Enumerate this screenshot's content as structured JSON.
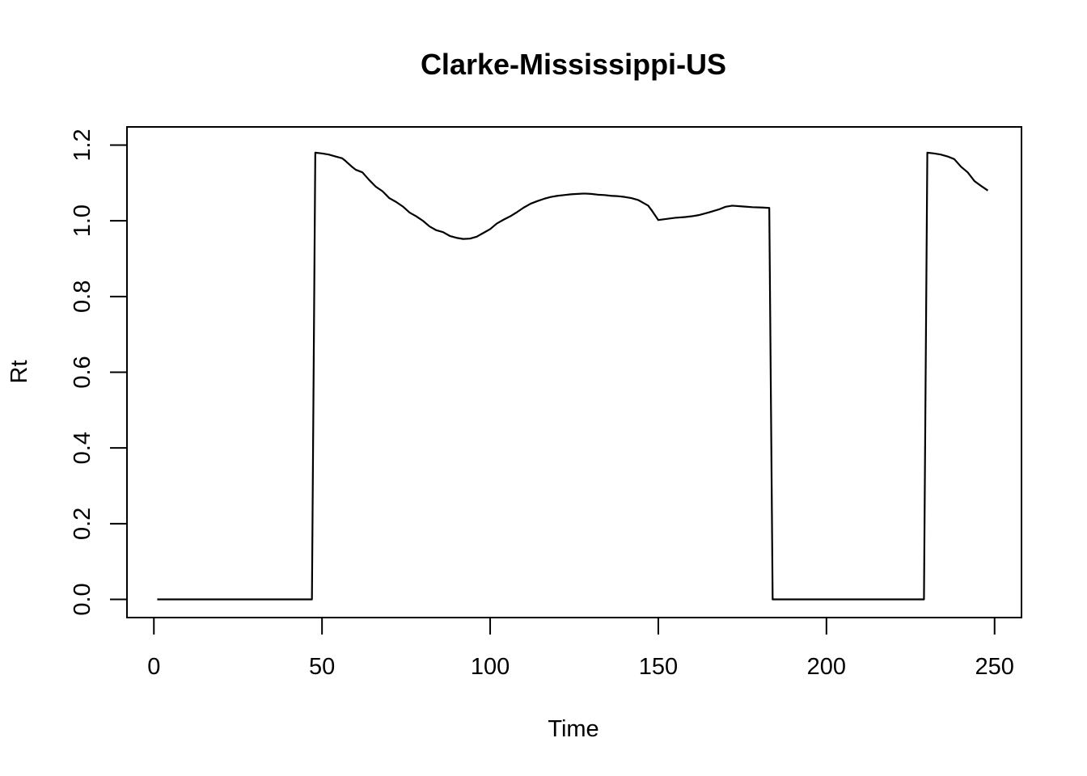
{
  "chart_data": {
    "type": "line",
    "title": "Clarke-Mississippi-US",
    "xlabel": "Time",
    "ylabel": "Rt",
    "xlim": [
      -8,
      258
    ],
    "ylim": [
      -0.048,
      1.248
    ],
    "xticks": [
      0,
      50,
      100,
      150,
      200,
      250
    ],
    "yticks": [
      0.0,
      0.2,
      0.4,
      0.6,
      0.8,
      1.0,
      1.2
    ],
    "xtick_labels": [
      "0",
      "50",
      "100",
      "150",
      "200",
      "250"
    ],
    "ytick_labels": [
      "0.0",
      "0.2",
      "0.4",
      "0.6",
      "0.8",
      "1.0",
      "1.2"
    ],
    "grid": false,
    "series": [
      {
        "color": "#000000",
        "x": [
          1,
          47,
          48,
          50,
          52,
          54,
          56,
          57,
          59,
          60,
          62,
          64,
          66,
          68,
          70,
          72,
          74,
          76,
          78,
          80,
          82,
          84,
          86,
          88,
          90,
          92,
          94,
          96,
          98,
          100,
          102,
          104,
          106,
          108,
          110,
          112,
          114,
          116,
          118,
          120,
          122,
          124,
          126,
          128,
          130,
          132,
          134,
          136,
          138,
          140,
          142,
          144,
          146,
          147,
          148,
          150,
          155,
          158,
          160,
          162,
          165,
          168,
          170,
          172,
          175,
          178,
          181,
          183,
          184,
          229,
          230,
          232,
          234,
          236,
          238,
          240,
          242,
          244,
          246,
          248
        ],
        "y": [
          0.0,
          0.0,
          1.18,
          1.178,
          1.175,
          1.17,
          1.165,
          1.158,
          1.142,
          1.135,
          1.128,
          1.108,
          1.09,
          1.078,
          1.06,
          1.05,
          1.038,
          1.022,
          1.012,
          1.0,
          0.985,
          0.975,
          0.97,
          0.96,
          0.955,
          0.952,
          0.953,
          0.958,
          0.968,
          0.978,
          0.993,
          1.003,
          1.012,
          1.023,
          1.035,
          1.045,
          1.052,
          1.058,
          1.063,
          1.066,
          1.068,
          1.07,
          1.071,
          1.072,
          1.071,
          1.069,
          1.068,
          1.066,
          1.065,
          1.063,
          1.06,
          1.055,
          1.045,
          1.04,
          1.028,
          1.002,
          1.008,
          1.01,
          1.012,
          1.015,
          1.022,
          1.03,
          1.037,
          1.04,
          1.038,
          1.036,
          1.035,
          1.034,
          0.0,
          0.0,
          1.18,
          1.178,
          1.175,
          1.17,
          1.163,
          1.143,
          1.128,
          1.105,
          1.092,
          1.08
        ]
      }
    ]
  }
}
